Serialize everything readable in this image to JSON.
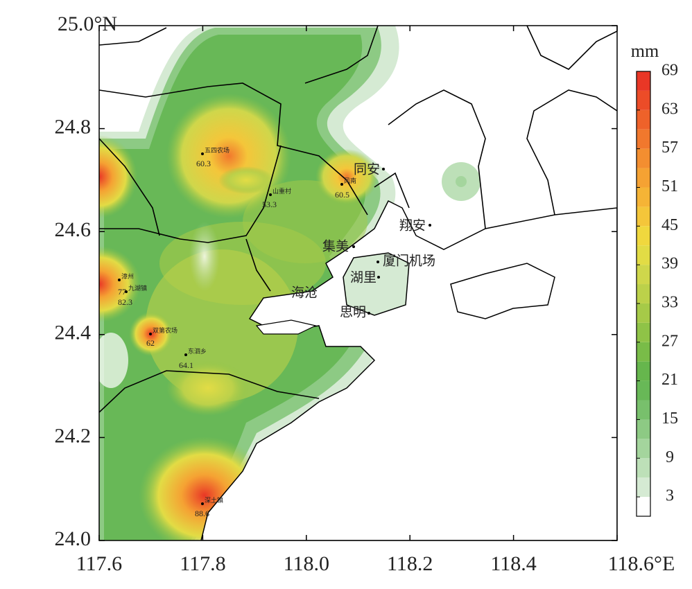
{
  "map": {
    "xlim": [
      117.6,
      118.6
    ],
    "xticks": [
      117.6,
      117.8,
      {
        "value": 118,
        "label": "118.0"
      },
      118.2,
      118.4,
      {
        "value": 118.6,
        "label": "118.6°E"
      }
    ],
    "ylim": [
      24,
      25
    ],
    "yticks": [
      {
        "value": 25,
        "label": "25.0°N"
      },
      24.8,
      24.6,
      24.4,
      24.2,
      {
        "value": 24,
        "label": "24.0"
      }
    ],
    "colorbar": {
      "unit": "mm",
      "clim": [
        0,
        69
      ],
      "ticks": [
        3,
        9,
        15,
        21,
        27,
        33,
        39,
        45,
        51,
        57,
        63,
        69
      ],
      "colors": [
        "#ffffff",
        "#d5ead3",
        "#bde0b8",
        "#a4d59d",
        "#8dca84",
        "#78c06c",
        "#68b857",
        "#66b64d",
        "#79bc48",
        "#8fc347",
        "#a6ca48",
        "#bcd14a",
        "#cfd74b",
        "#e2dc45",
        "#f0d83e",
        "#f4c63a",
        "#f5b436",
        "#f5a233",
        "#f38e30",
        "#f1782d",
        "#ee622a",
        "#ec4c28",
        "#e93726"
      ]
    },
    "stations": [
      {
        "name": "五四农场",
        "value": 60.3
      },
      {
        "name": "山重村",
        "value": 53.3
      },
      {
        "name": "风南",
        "value": 60.5
      },
      {
        "name": "漳州",
        "value": 77
      },
      {
        "name": "九湖镇",
        "value": 82.3
      },
      {
        "name": "双第农场",
        "value": 62
      },
      {
        "name": "东泗乡",
        "value": 64.1
      },
      {
        "name": "深土镇",
        "value": 88.6
      }
    ],
    "places": [
      "同安",
      "翔安",
      "集美",
      "厦门机场",
      "湖里",
      "海沧",
      "思明"
    ]
  }
}
